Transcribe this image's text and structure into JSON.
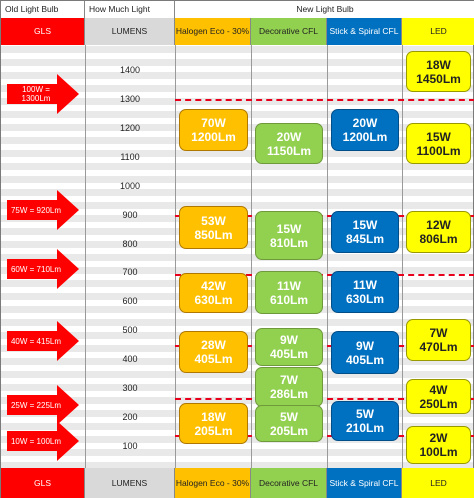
{
  "header": {
    "old_bulb": "Old Light Bulb",
    "how_much_light": "How Much Light",
    "new_bulb": "New Light Bulb"
  },
  "columns": {
    "gls": "GLS",
    "lumens": "LUMENS",
    "halogen": "Halogen Eco - 30%",
    "decorative_cfl": "Decorative CFL",
    "stick_spiral_cfl": "Stick & Spiral CFL",
    "led": "LED"
  },
  "lumen_scale": [
    "1400",
    "1300",
    "1200",
    "1100",
    "1000",
    "900",
    "800",
    "700",
    "600",
    "500",
    "400",
    "300",
    "200",
    "100"
  ],
  "gls_arrows": [
    {
      "label": "100W = 1300Lm",
      "lumens": 1300
    },
    {
      "label": "75W = 920Lm",
      "lumens": 920
    },
    {
      "label": "60W = 710Lm",
      "lumens": 710
    },
    {
      "label": "40W = 415Lm",
      "lumens": 415
    },
    {
      "label": "25W = 225Lm",
      "lumens": 225
    },
    {
      "label": "10W = 100Lm",
      "lumens": 100
    }
  ],
  "halogen_boxes": [
    {
      "watts": "70W",
      "lumens": "1200Lm"
    },
    {
      "watts": "53W",
      "lumens": "850Lm"
    },
    {
      "watts": "42W",
      "lumens": "630Lm"
    },
    {
      "watts": "28W",
      "lumens": "405Lm"
    },
    {
      "watts": "18W",
      "lumens": "205Lm"
    }
  ],
  "decorative_cfl_boxes": [
    {
      "watts": "20W",
      "lumens": "1150Lm"
    },
    {
      "watts": "15W",
      "lumens": "810Lm"
    },
    {
      "watts": "11W",
      "lumens": "610Lm"
    },
    {
      "watts": "9W",
      "lumens": "405Lm"
    },
    {
      "watts": "7W",
      "lumens": "286Lm"
    },
    {
      "watts": "5W",
      "lumens": "205Lm"
    }
  ],
  "spiral_cfl_boxes": [
    {
      "watts": "20W",
      "lumens": "1200Lm"
    },
    {
      "watts": "15W",
      "lumens": "845Lm"
    },
    {
      "watts": "11W",
      "lumens": "630Lm"
    },
    {
      "watts": "9W",
      "lumens": "405Lm"
    },
    {
      "watts": "5W",
      "lumens": "210Lm"
    }
  ],
  "led_boxes": [
    {
      "watts": "18W",
      "lumens": "1450Lm"
    },
    {
      "watts": "15W",
      "lumens": "1100Lm"
    },
    {
      "watts": "12W",
      "lumens": "806Lm"
    },
    {
      "watts": "7W",
      "lumens": "470Lm"
    },
    {
      "watts": "4W",
      "lumens": "250Lm"
    },
    {
      "watts": "2W",
      "lumens": "100Lm"
    }
  ],
  "colors": {
    "gls": "#ff0000",
    "halogen": "#ffc000",
    "decorative_cfl": "#92d050",
    "stick_spiral_cfl": "#0070c0",
    "led": "#ffff00",
    "dashed_line": "#e8001c"
  }
}
